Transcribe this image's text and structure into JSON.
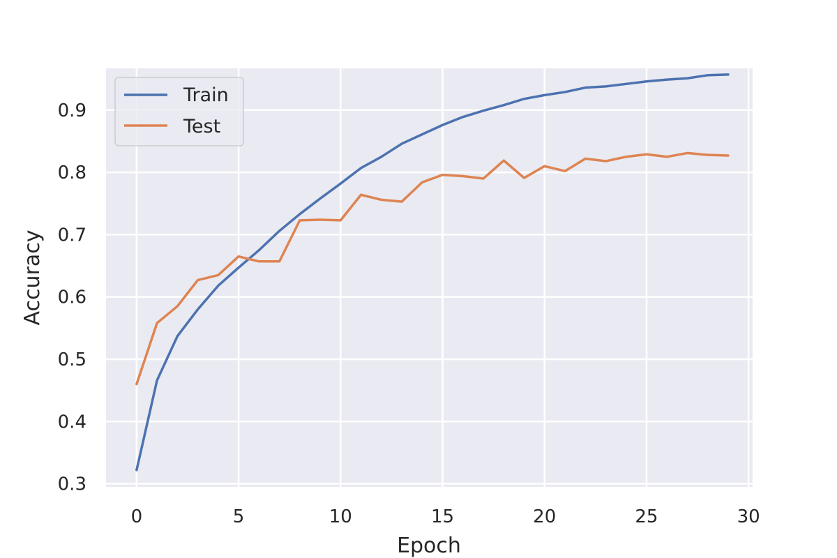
{
  "chart_data": {
    "type": "line",
    "xlabel": "Epoch",
    "ylabel": "Accuracy",
    "xlim": [
      -1.5,
      30.2
    ],
    "ylim": [
      0.295,
      0.967
    ],
    "xticks": [
      0,
      5,
      10,
      15,
      20,
      25,
      30
    ],
    "yticks": [
      0.3,
      0.4,
      0.5,
      0.6,
      0.7,
      0.8,
      0.9
    ],
    "x": [
      0,
      1,
      2,
      3,
      4,
      5,
      6,
      7,
      8,
      9,
      10,
      11,
      12,
      13,
      14,
      15,
      16,
      17,
      18,
      19,
      20,
      21,
      22,
      23,
      24,
      25,
      26,
      27,
      28,
      29
    ],
    "series": [
      {
        "name": "Train",
        "color": "#4c72b0",
        "values": [
          0.322,
          0.466,
          0.537,
          0.58,
          0.618,
          0.647,
          0.675,
          0.706,
          0.733,
          0.758,
          0.782,
          0.807,
          0.825,
          0.846,
          0.861,
          0.876,
          0.889,
          0.899,
          0.908,
          0.918,
          0.924,
          0.929,
          0.936,
          0.938,
          0.942,
          0.946,
          0.949,
          0.951,
          0.956,
          0.957
        ]
      },
      {
        "name": "Test",
        "color": "#dd8452",
        "values": [
          0.46,
          0.558,
          0.585,
          0.627,
          0.635,
          0.665,
          0.657,
          0.657,
          0.723,
          0.724,
          0.723,
          0.764,
          0.756,
          0.753,
          0.784,
          0.796,
          0.794,
          0.79,
          0.819,
          0.791,
          0.81,
          0.802,
          0.822,
          0.818,
          0.825,
          0.829,
          0.825,
          0.831,
          0.828,
          0.827
        ]
      }
    ],
    "grid": true,
    "legend_position": "top-left",
    "background_color": "#eaeaf2",
    "grid_color": "#ffffff"
  }
}
